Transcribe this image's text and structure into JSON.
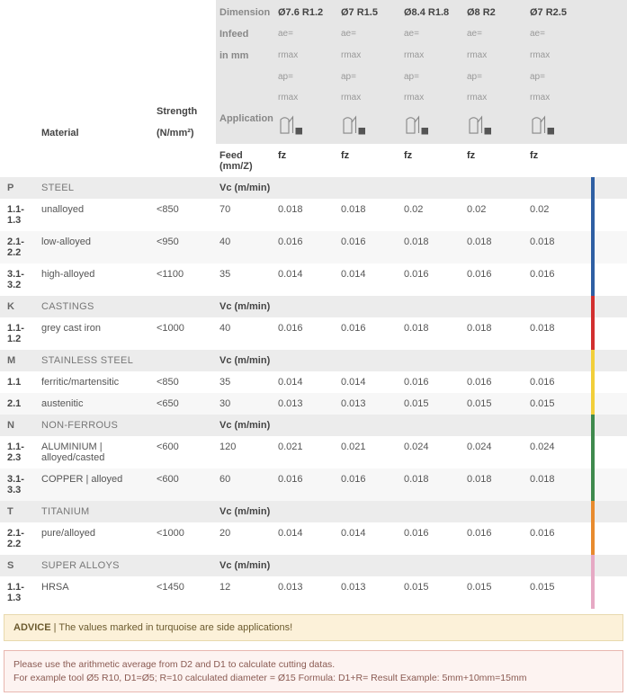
{
  "header": {
    "labels": {
      "dimension": "Dimension",
      "infeed": "Infeed",
      "infeed2": "in mm",
      "application": "Application",
      "material": "Material",
      "strength": "Strength",
      "strength_unit": "(N/mm²)",
      "feed": "Feed (mm/Z)"
    },
    "columns": [
      {
        "dim": "Ø7.6  R1.2",
        "ae": "ae=",
        "rmax1": "rmax",
        "ap": "ap=",
        "rmax2": "rmax",
        "fz": "fz"
      },
      {
        "dim": "Ø7  R1.5",
        "ae": "ae=",
        "rmax1": "rmax",
        "ap": "ap=",
        "rmax2": "rmax",
        "fz": "fz"
      },
      {
        "dim": "Ø8.4  R1.8",
        "ae": "ae=",
        "rmax1": "rmax",
        "ap": "ap=",
        "rmax2": "rmax",
        "fz": "fz"
      },
      {
        "dim": "Ø8  R2",
        "ae": "ae=",
        "rmax1": "rmax",
        "ap": "ap=",
        "rmax2": "rmax",
        "fz": "fz"
      },
      {
        "dim": "Ø7  R2.5",
        "ae": "ae=",
        "rmax1": "rmax",
        "ap": "ap=",
        "rmax2": "rmax",
        "fz": "fz"
      }
    ]
  },
  "vc_label": "Vc (m/min)",
  "groups": [
    {
      "code": "P",
      "name": "STEEL",
      "bar_color": "#2e5fa3",
      "rows": [
        {
          "code": "1.1-1.3",
          "mat": "unalloyed",
          "str": "<850",
          "vc": "70",
          "v": [
            "0.018",
            "0.018",
            "0.02",
            "0.02",
            "0.02"
          ]
        },
        {
          "code": "2.1-2.2",
          "mat": "low-alloyed",
          "str": "<950",
          "vc": "40",
          "v": [
            "0.016",
            "0.016",
            "0.018",
            "0.018",
            "0.018"
          ]
        },
        {
          "code": "3.1-3.2",
          "mat": "high-alloyed",
          "str": "<1100",
          "vc": "35",
          "v": [
            "0.014",
            "0.014",
            "0.016",
            "0.016",
            "0.016"
          ]
        }
      ]
    },
    {
      "code": "K",
      "name": "CASTINGS",
      "bar_color": "#d22f2f",
      "rows": [
        {
          "code": "1.1-1.2",
          "mat": "grey cast iron",
          "str": "<1000",
          "vc": "40",
          "v": [
            "0.016",
            "0.016",
            "0.018",
            "0.018",
            "0.018"
          ]
        }
      ]
    },
    {
      "code": "M",
      "name": "STAINLESS STEEL",
      "bar_color": "#f2cf3a",
      "rows": [
        {
          "code": "1.1",
          "mat": "ferritic/martensitic",
          "str": "<850",
          "vc": "35",
          "v": [
            "0.014",
            "0.014",
            "0.016",
            "0.016",
            "0.016"
          ]
        },
        {
          "code": "2.1",
          "mat": "austenitic",
          "str": "<650",
          "vc": "30",
          "v": [
            "0.013",
            "0.013",
            "0.015",
            "0.015",
            "0.015"
          ]
        }
      ]
    },
    {
      "code": "N",
      "name": "NON-FERROUS",
      "bar_color": "#3f8a4d",
      "rows": [
        {
          "code": "1.1-2.3",
          "mat": "ALUMINIUM | alloyed/casted",
          "str": "<600",
          "vc": "120",
          "v": [
            "0.021",
            "0.021",
            "0.024",
            "0.024",
            "0.024"
          ]
        },
        {
          "code": "3.1-3.3",
          "mat": "COPPER | alloyed",
          "str": "<600",
          "vc": "60",
          "v": [
            "0.016",
            "0.016",
            "0.018",
            "0.018",
            "0.018"
          ]
        }
      ]
    },
    {
      "code": "T",
      "name": "TITANIUM",
      "bar_color": "#e88b2e",
      "rows": [
        {
          "code": "2.1-2.2",
          "mat": "pure/alloyed",
          "str": "<1000",
          "vc": "20",
          "v": [
            "0.014",
            "0.014",
            "0.016",
            "0.016",
            "0.016"
          ]
        }
      ]
    },
    {
      "code": "S",
      "name": "SUPER ALLOYS",
      "bar_color": "#e6a9c4",
      "rows": [
        {
          "code": "1.1-1.3",
          "mat": "HRSA",
          "str": "<1450",
          "vc": "12",
          "v": [
            "0.013",
            "0.013",
            "0.015",
            "0.015",
            "0.015"
          ]
        }
      ]
    }
  ],
  "advice": {
    "prefix": "ADVICE",
    "text": "The values marked in turquoise are side applications!"
  },
  "footnote": {
    "line1": "Please use the arithmetic average from D2 and D1 to calculate cutting datas.",
    "line2": "For example tool Ø5 R10, D1=Ø5; R=10 calculated diameter = Ø15    Formula: D1+R= Result    Example: 5mm+10mm=15mm"
  },
  "icon_colors": {
    "stroke": "#888888",
    "fill_dark": "#555555"
  }
}
